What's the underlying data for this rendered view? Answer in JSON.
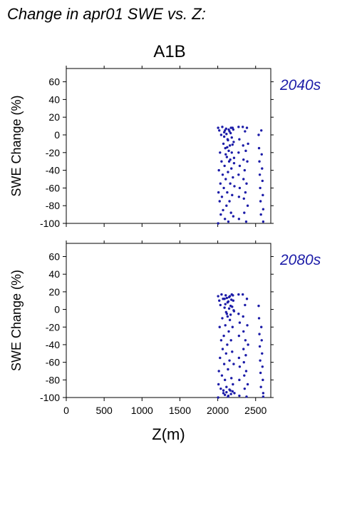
{
  "header": {
    "title": "Change in apr01 SWE vs. Z:",
    "scenario": "A1B"
  },
  "colors": {
    "points": "#1c1ca8",
    "period_label": "#1c1ca8",
    "axis": "#000000"
  },
  "chart_data": [
    {
      "type": "scatter",
      "period": "2040s",
      "ylabel": "SWE Change (%)",
      "xlabel": "",
      "xlim": [
        0,
        2700
      ],
      "ylim": [
        -100,
        75
      ],
      "xticks": [
        0,
        500,
        1000,
        1500,
        2000,
        2500
      ],
      "yticks": [
        60,
        40,
        20,
        0,
        -20,
        -40,
        -60,
        -80,
        -100
      ],
      "x_tick_labels_shown": false,
      "points": [
        [
          2005,
          8
        ],
        [
          2005,
          -100
        ],
        [
          2010,
          -65
        ],
        [
          2015,
          -40
        ],
        [
          2020,
          5
        ],
        [
          2025,
          -75
        ],
        [
          2030,
          -20
        ],
        [
          2035,
          -55
        ],
        [
          2040,
          -90
        ],
        [
          2045,
          0
        ],
        [
          2050,
          -30
        ],
        [
          2055,
          -70
        ],
        [
          2060,
          9
        ],
        [
          2065,
          -45
        ],
        [
          2070,
          -85
        ],
        [
          2075,
          -10
        ],
        [
          2080,
          -60
        ],
        [
          2085,
          3
        ],
        [
          2090,
          -35
        ],
        [
          2095,
          -95
        ],
        [
          2100,
          -15
        ],
        [
          2105,
          -50
        ],
        [
          2110,
          7
        ],
        [
          2115,
          -80
        ],
        [
          2120,
          -25
        ],
        [
          2125,
          -65
        ],
        [
          2130,
          -5
        ],
        [
          2135,
          -42
        ],
        [
          2140,
          -98
        ],
        [
          2145,
          6
        ],
        [
          2150,
          -30
        ],
        [
          2155,
          -75
        ],
        [
          2160,
          -12
        ],
        [
          2165,
          -55
        ],
        [
          2170,
          2
        ],
        [
          2175,
          -88
        ],
        [
          2180,
          -38
        ],
        [
          2185,
          -20
        ],
        [
          2190,
          -68
        ],
        [
          2195,
          8
        ],
        [
          2200,
          -48
        ],
        [
          2205,
          -92
        ],
        [
          2210,
          -8
        ],
        [
          2215,
          -32
        ],
        [
          2220,
          -58
        ],
        [
          2085,
          -2
        ],
        [
          2095,
          5
        ],
        [
          2105,
          -22
        ],
        [
          2115,
          1
        ],
        [
          2125,
          -14
        ],
        [
          2135,
          -6
        ],
        [
          2145,
          -18
        ],
        [
          2155,
          4
        ],
        [
          2165,
          -28
        ],
        [
          2175,
          8
        ],
        [
          2185,
          -3
        ],
        [
          2195,
          -11
        ],
        [
          2205,
          6
        ],
        [
          2215,
          -26
        ],
        [
          2275,
          9
        ],
        [
          2275,
          -20
        ],
        [
          2275,
          -45
        ],
        [
          2280,
          -70
        ],
        [
          2280,
          -95
        ],
        [
          2285,
          -5
        ],
        [
          2290,
          -60
        ],
        [
          2290,
          -35
        ],
        [
          2330,
          9
        ],
        [
          2335,
          -12
        ],
        [
          2340,
          -28
        ],
        [
          2340,
          -50
        ],
        [
          2345,
          -72
        ],
        [
          2350,
          -88
        ],
        [
          2355,
          -40
        ],
        [
          2360,
          4
        ],
        [
          2365,
          -65
        ],
        [
          2370,
          -18
        ],
        [
          2375,
          -98
        ],
        [
          2380,
          -55
        ],
        [
          2385,
          8
        ],
        [
          2390,
          -30
        ],
        [
          2395,
          -80
        ],
        [
          2400,
          -10
        ],
        [
          2540,
          0
        ],
        [
          2545,
          -15
        ],
        [
          2550,
          -30
        ],
        [
          2555,
          -45
        ],
        [
          2560,
          -60
        ],
        [
          2565,
          -75
        ],
        [
          2570,
          -90
        ],
        [
          2575,
          5
        ],
        [
          2580,
          -22
        ],
        [
          2585,
          -38
        ],
        [
          2590,
          -52
        ],
        [
          2595,
          -68
        ],
        [
          2600,
          -84
        ],
        [
          2600,
          -98
        ]
      ]
    },
    {
      "type": "scatter",
      "period": "2080s",
      "ylabel": "SWE Change (%)",
      "xlabel": "Z(m)",
      "xlim": [
        0,
        2700
      ],
      "ylim": [
        -100,
        75
      ],
      "xticks": [
        0,
        500,
        1000,
        1500,
        2000,
        2500
      ],
      "yticks": [
        60,
        40,
        20,
        0,
        -20,
        -40,
        -60,
        -80,
        -100
      ],
      "x_tick_labels_shown": true,
      "points": [
        [
          2005,
          15
        ],
        [
          2005,
          -100
        ],
        [
          2010,
          -85
        ],
        [
          2015,
          -70
        ],
        [
          2020,
          10
        ],
        [
          2025,
          -20
        ],
        [
          2030,
          -55
        ],
        [
          2035,
          5
        ],
        [
          2040,
          -90
        ],
        [
          2045,
          -35
        ],
        [
          2050,
          17
        ],
        [
          2055,
          -75
        ],
        [
          2060,
          -10
        ],
        [
          2065,
          -45
        ],
        [
          2070,
          12
        ],
        [
          2075,
          -95
        ],
        [
          2080,
          -30
        ],
        [
          2085,
          -62
        ],
        [
          2090,
          2
        ],
        [
          2095,
          -80
        ],
        [
          2100,
          -18
        ],
        [
          2105,
          16
        ],
        [
          2110,
          -50
        ],
        [
          2115,
          -88
        ],
        [
          2120,
          -5
        ],
        [
          2125,
          -40
        ],
        [
          2130,
          8
        ],
        [
          2135,
          -68
        ],
        [
          2140,
          -98
        ],
        [
          2145,
          -25
        ],
        [
          2150,
          14
        ],
        [
          2155,
          -58
        ],
        [
          2160,
          -12
        ],
        [
          2165,
          -92
        ],
        [
          2170,
          4
        ],
        [
          2175,
          -35
        ],
        [
          2180,
          -78
        ],
        [
          2185,
          17
        ],
        [
          2190,
          -48
        ],
        [
          2195,
          -20
        ],
        [
          2200,
          -85
        ],
        [
          2205,
          10
        ],
        [
          2210,
          -62
        ],
        [
          2215,
          -2
        ],
        [
          2220,
          -95
        ],
        [
          2090,
          12
        ],
        [
          2100,
          6
        ],
        [
          2110,
          -3
        ],
        [
          2120,
          13
        ],
        [
          2130,
          -8
        ],
        [
          2140,
          9
        ],
        [
          2150,
          1
        ],
        [
          2160,
          15
        ],
        [
          2170,
          -6
        ],
        [
          2180,
          11
        ],
        [
          2190,
          3
        ],
        [
          2200,
          16
        ],
        [
          2210,
          -1
        ],
        [
          2075,
          -92
        ],
        [
          2095,
          -97
        ],
        [
          2115,
          -94
        ],
        [
          2135,
          -99
        ],
        [
          2155,
          -91
        ],
        [
          2175,
          -96
        ],
        [
          2195,
          -93
        ],
        [
          2275,
          17
        ],
        [
          2275,
          -5
        ],
        [
          2280,
          -30
        ],
        [
          2280,
          -55
        ],
        [
          2285,
          -80
        ],
        [
          2285,
          -98
        ],
        [
          2290,
          -15
        ],
        [
          2290,
          -65
        ],
        [
          2330,
          17
        ],
        [
          2335,
          -8
        ],
        [
          2340,
          -25
        ],
        [
          2340,
          -45
        ],
        [
          2345,
          -60
        ],
        [
          2350,
          -75
        ],
        [
          2355,
          -90
        ],
        [
          2360,
          5
        ],
        [
          2365,
          -35
        ],
        [
          2370,
          -52
        ],
        [
          2375,
          -70
        ],
        [
          2380,
          -99
        ],
        [
          2385,
          12
        ],
        [
          2390,
          -18
        ],
        [
          2395,
          -85
        ],
        [
          2400,
          -40
        ],
        [
          2540,
          4
        ],
        [
          2545,
          -10
        ],
        [
          2550,
          -28
        ],
        [
          2555,
          -42
        ],
        [
          2560,
          -58
        ],
        [
          2565,
          -72
        ],
        [
          2570,
          -88
        ],
        [
          2575,
          -20
        ],
        [
          2580,
          -35
        ],
        [
          2585,
          -50
        ],
        [
          2590,
          -65
        ],
        [
          2595,
          -80
        ],
        [
          2600,
          -95
        ],
        [
          2600,
          -99
        ]
      ]
    }
  ]
}
